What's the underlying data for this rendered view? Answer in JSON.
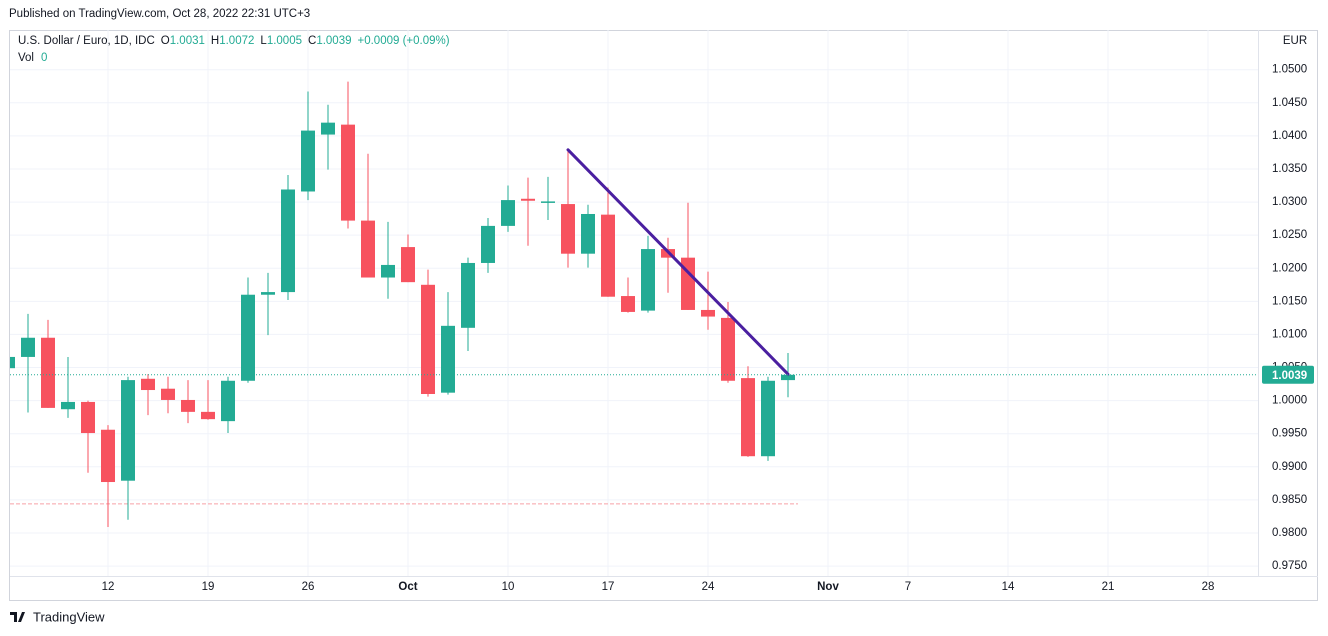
{
  "header": {
    "title": "Published on TradingView.com, Oct 28, 2022 22:31 UTC+3"
  },
  "footer": {
    "brand": "TradingView"
  },
  "chart_data": {
    "type": "candlestick",
    "title": "U.S. Dollar / Euro, 1D, IDC",
    "ohlc_labels": [
      "O",
      "H",
      "L",
      "C"
    ],
    "ohlc_values": [
      "1.0031",
      "1.0072",
      "1.0005",
      "1.0039"
    ],
    "change": "+0.0009 (+0.09%)",
    "volume_label": "Vol",
    "volume_value": "0",
    "currency": "EUR",
    "categories": [
      null,
      null,
      null,
      null,
      null,
      "12",
      null,
      null,
      null,
      null,
      "19",
      null,
      null,
      null,
      null,
      "26",
      null,
      null,
      null,
      null,
      "Oct",
      null,
      null,
      null,
      null,
      "10",
      null,
      null,
      null,
      null,
      "17",
      null,
      null,
      null,
      null,
      "24",
      null,
      null,
      null,
      null,
      null,
      "Nov",
      null,
      null,
      null,
      "7",
      null,
      null,
      null,
      null,
      "14",
      null,
      null,
      null,
      null,
      "21",
      null,
      null,
      null,
      null,
      "28",
      null,
      null
    ],
    "open": [
      1.0049,
      1.0066,
      1.0095,
      0.9987,
      0.9998,
      0.9956,
      0.9879,
      1.0033,
      1.0018,
      1.0001,
      0.9983,
      0.9969,
      1.003,
      1.016,
      1.0164,
      1.0316,
      1.0402,
      1.0417,
      1.0272,
      1.0186,
      1.0232,
      1.0175,
      1.0012,
      1.011,
      1.0208,
      1.0264,
      1.0305,
      1.0299,
      1.0297,
      1.0222,
      1.0281,
      1.0158,
      1.0136,
      1.0229,
      1.0216,
      1.0137,
      1.0125,
      1.0034,
      0.9916,
      1.0031,
      null,
      null,
      null,
      null,
      null,
      null,
      null,
      null,
      null,
      null,
      null,
      null,
      null,
      null,
      null,
      null,
      null,
      null,
      null,
      null,
      null,
      null,
      null
    ],
    "high": [
      1.0075,
      1.0131,
      1.0122,
      1.0066,
      1.0,
      0.9963,
      1.0036,
      1.004,
      1.0036,
      1.0031,
      1.0031,
      1.0036,
      1.0186,
      1.0193,
      1.0341,
      1.0467,
      1.0447,
      1.0482,
      1.0373,
      1.027,
      1.0251,
      1.0198,
      1.0164,
      1.0216,
      1.0276,
      1.0325,
      1.0337,
      1.0338,
      1.0379,
      1.0296,
      1.0322,
      1.0186,
      1.0249,
      1.0246,
      1.0299,
      1.0195,
      1.0149,
      1.0052,
      1.0036,
      1.0072,
      null,
      null,
      null,
      null,
      null,
      null,
      null,
      null,
      null,
      null,
      null,
      null,
      null,
      null,
      null,
      null,
      null,
      null,
      null,
      null,
      null,
      null,
      null
    ],
    "low": [
      1.004,
      0.9982,
      0.9989,
      0.9974,
      0.9891,
      0.9809,
      0.982,
      0.9978,
      0.9981,
      0.9966,
      0.9971,
      0.9951,
      1.0027,
      1.0099,
      1.0152,
      1.0303,
      1.0349,
      1.026,
      1.0186,
      1.0154,
      1.0179,
      1.0006,
      1.0009,
      1.0075,
      1.0193,
      1.0255,
      1.0234,
      1.0273,
      1.0201,
      1.0201,
      1.0157,
      1.0133,
      1.0133,
      1.0163,
      1.0137,
      1.0107,
      1.0027,
      0.9915,
      0.9909,
      1.0005,
      null,
      null,
      null,
      null,
      null,
      null,
      null,
      null,
      null,
      null,
      null,
      null,
      null,
      null,
      null,
      null,
      null,
      null,
      null,
      null,
      null,
      null,
      null
    ],
    "close": [
      1.0066,
      1.0095,
      0.9989,
      0.9998,
      0.9951,
      0.9877,
      1.0031,
      1.0016,
      1.0001,
      0.9983,
      0.9972,
      1.003,
      1.016,
      1.0164,
      1.0319,
      1.0408,
      1.042,
      1.0272,
      1.0186,
      1.0205,
      1.0179,
      1.001,
      1.0113,
      1.0208,
      1.0264,
      1.0303,
      1.0302,
      1.0301,
      1.0222,
      1.0282,
      1.0157,
      1.0134,
      1.0229,
      1.0216,
      1.0137,
      1.0127,
      1.003,
      0.9916,
      1.003,
      1.0039,
      null,
      null,
      null,
      null,
      null,
      null,
      null,
      null,
      null,
      null,
      null,
      null,
      null,
      null,
      null,
      null,
      null,
      null,
      null,
      null,
      null,
      null,
      null
    ],
    "up_color": "#22ab94",
    "down_color": "#f7525f",
    "last_price": 1.0039,
    "reference_line": 0.9844,
    "trend_line": {
      "color": "#4a1fa0",
      "start": {
        "index": 28,
        "value": 1.0379
      },
      "end": {
        "index": 39,
        "value": 1.004
      }
    },
    "ylim": [
      0.9735,
      1.056
    ],
    "yticks": [
      {
        "value": 0.975,
        "label": "0.9750"
      },
      {
        "value": 0.98,
        "label": "0.9800"
      },
      {
        "value": 0.985,
        "label": "0.9850"
      },
      {
        "value": 0.99,
        "label": "0.9900"
      },
      {
        "value": 0.995,
        "label": "0.9950"
      },
      {
        "value": 1.0,
        "label": "1.0000"
      },
      {
        "value": 1.005,
        "label": "1.0050"
      },
      {
        "value": 1.01,
        "label": "1.0100"
      },
      {
        "value": 1.015,
        "label": "1.0150"
      },
      {
        "value": 1.02,
        "label": "1.0200"
      },
      {
        "value": 1.025,
        "label": "1.0250"
      },
      {
        "value": 1.03,
        "label": "1.0300"
      },
      {
        "value": 1.035,
        "label": "1.0350"
      },
      {
        "value": 1.04,
        "label": "1.0400"
      },
      {
        "value": 1.045,
        "label": "1.0450"
      },
      {
        "value": 1.05,
        "label": "1.0500"
      }
    ],
    "grid": true
  }
}
